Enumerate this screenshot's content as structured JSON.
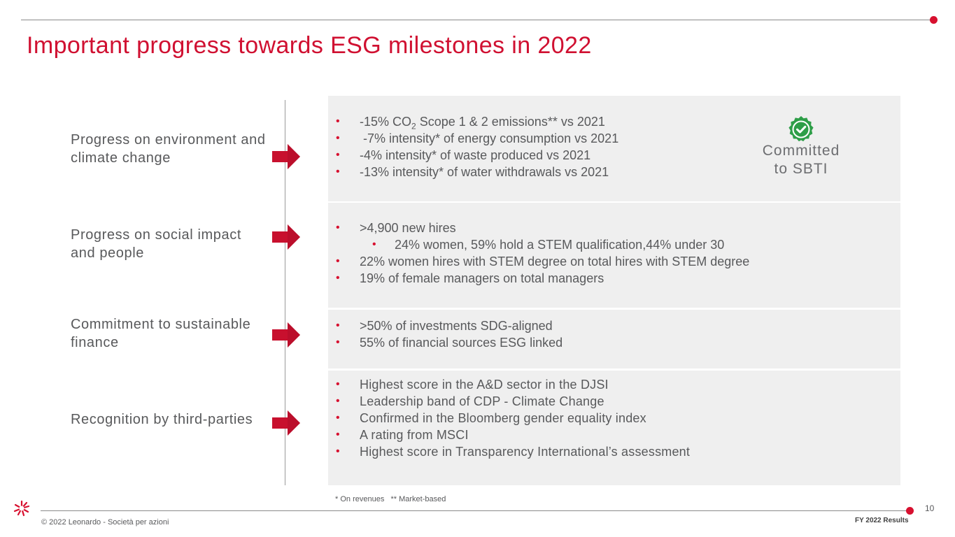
{
  "header": {
    "title": "Important progress towards ESG milestones in 2022"
  },
  "categories": [
    {
      "label": "Progress on environment and climate change"
    },
    {
      "label": "Progress on social impact and people"
    },
    {
      "label": "Commitment to sustainable finance"
    },
    {
      "label": "Recognition by third-parties"
    }
  ],
  "environment": {
    "bullets": [
      {
        "pre": "-15% CO",
        "sub": "2",
        "post": " Scope 1 & 2 emissions** vs 2021"
      },
      {
        "text": " -7% intensity* of energy consumption vs 2021"
      },
      {
        "text": "-4% intensity* of waste produced vs 2021"
      },
      {
        "text": "-13% intensity* of water withdrawals vs 2021"
      }
    ],
    "badge_icon": "verified-check-icon",
    "badge_label": "Committed to SBTI"
  },
  "social": {
    "bullets": [
      ">4,900 new hires",
      "24% women, 59% hold a STEM qualification,44% under 30",
      "22% women hires with STEM degree on total hires with STEM degree",
      "19% of female managers on total managers"
    ]
  },
  "finance": {
    "bullets": [
      ">50% of investments SDG-aligned",
      "55% of financial sources ESG linked"
    ]
  },
  "recognition": {
    "bullets": [
      "Highest score in the A&D sector in the DJSI",
      "Leadership band of CDP - Climate Change",
      "Confirmed in the Bloomberg gender equality index",
      "A rating from MSCI",
      "Highest score in Transparency International’s assessment"
    ]
  },
  "footer": {
    "footnote": "* On revenues   ** Market-based",
    "copyright": "© 2022 Leonardo - Società per azioni",
    "page_number": "10",
    "doc_label": "FY 2022 Results"
  },
  "colors": {
    "accent": "#d7102f",
    "title": "#d01031",
    "arrow": "#c8102e",
    "badge": "#2e9e48",
    "panel": "#efefef",
    "text": "#58595b"
  }
}
